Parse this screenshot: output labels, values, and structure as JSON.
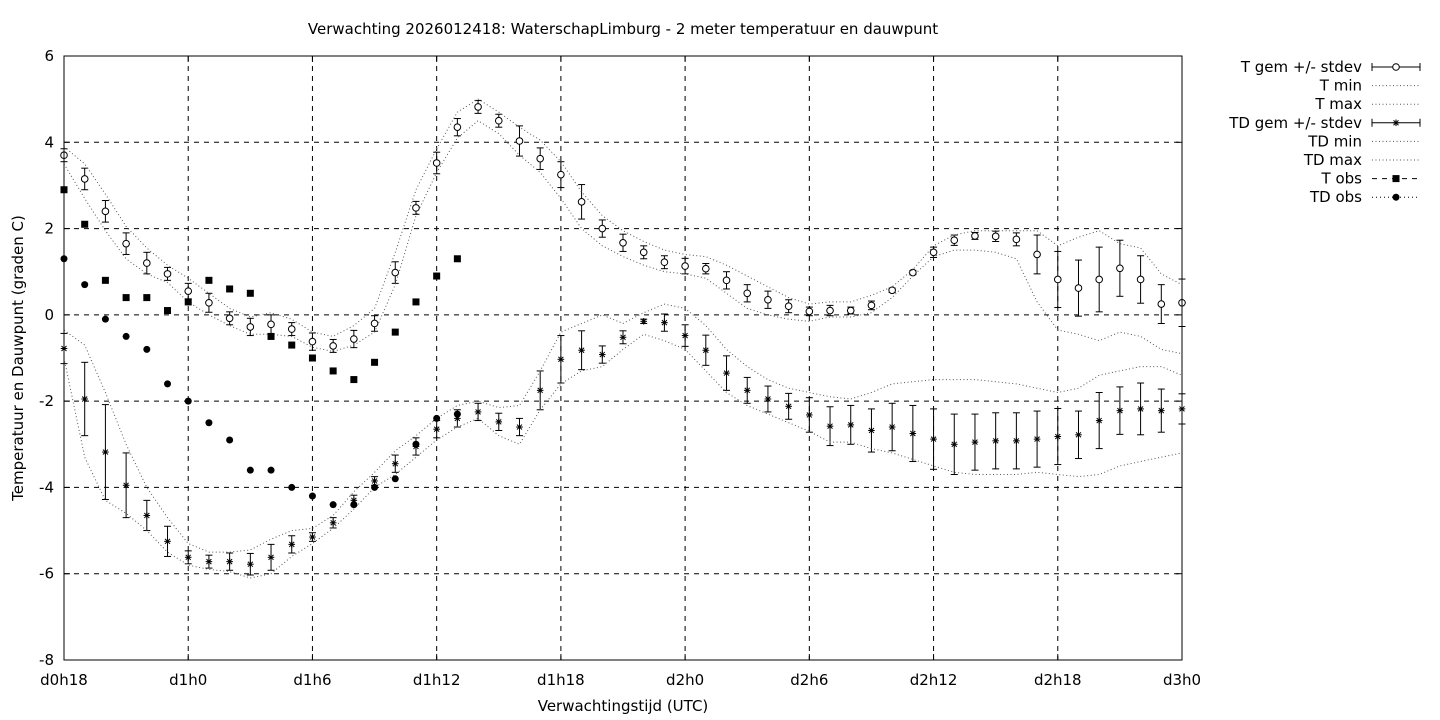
{
  "chart_data": {
    "type": "line",
    "title": "Verwachting 2026012418: WaterschapLimburg - 2 meter temperatuur en dauwpunt",
    "xlabel": "Verwachtingstijd (UTC)",
    "ylabel": "Temperatuur en Dauwpunt (graden C)",
    "xlim": [
      18,
      72
    ],
    "ylim": [
      -8,
      6
    ],
    "grid": true,
    "legend_position": "outside-right",
    "x_ticks": [
      {
        "value": 18,
        "label": "d0h18"
      },
      {
        "value": 24,
        "label": "d1h0"
      },
      {
        "value": 30,
        "label": "d1h6"
      },
      {
        "value": 36,
        "label": "d1h12"
      },
      {
        "value": 42,
        "label": "d1h18"
      },
      {
        "value": 48,
        "label": "d2h0"
      },
      {
        "value": 54,
        "label": "d2h6"
      },
      {
        "value": 60,
        "label": "d2h12"
      },
      {
        "value": 66,
        "label": "d2h18"
      },
      {
        "value": 72,
        "label": "d3h0"
      }
    ],
    "y_ticks": [
      {
        "value": 6,
        "label": "6"
      },
      {
        "value": 4,
        "label": "4"
      },
      {
        "value": 2,
        "label": "2"
      },
      {
        "value": 0,
        "label": "0"
      },
      {
        "value": -2,
        "label": "-2"
      },
      {
        "value": -4,
        "label": "-4"
      },
      {
        "value": -6,
        "label": "-6"
      },
      {
        "value": -8,
        "label": "-8"
      }
    ],
    "x": [
      18,
      19,
      20,
      21,
      22,
      23,
      24,
      25,
      26,
      27,
      28,
      29,
      30,
      31,
      32,
      33,
      34,
      35,
      36,
      37,
      38,
      39,
      40,
      41,
      42,
      43,
      44,
      45,
      46,
      47,
      48,
      49,
      50,
      51,
      52,
      53,
      54,
      55,
      56,
      57,
      58,
      59,
      60,
      61,
      62,
      63,
      64,
      65,
      66,
      67,
      68,
      69,
      70,
      71,
      72
    ],
    "series": [
      {
        "name": "T gem +/- stdev",
        "style": "errorbar-open-circle",
        "values": [
          3.7,
          3.15,
          2.4,
          1.65,
          1.2,
          0.95,
          0.55,
          0.28,
          -0.08,
          -0.28,
          -0.22,
          -0.33,
          -0.62,
          -0.72,
          -0.56,
          -0.2,
          0.98,
          2.48,
          3.52,
          4.35,
          4.82,
          4.5,
          4.03,
          3.62,
          3.25,
          2.62,
          2.0,
          1.67,
          1.45,
          1.22,
          1.13,
          1.07,
          0.8,
          0.5,
          0.35,
          0.2,
          0.08,
          0.1,
          0.1,
          0.22,
          0.57,
          0.98,
          1.45,
          1.73,
          1.83,
          1.82,
          1.75,
          1.4,
          0.82,
          0.62,
          0.82,
          1.08,
          0.82,
          0.25,
          0.28
        ],
        "errors": [
          0.15,
          0.25,
          0.25,
          0.25,
          0.25,
          0.15,
          0.18,
          0.22,
          0.15,
          0.2,
          0.22,
          0.15,
          0.2,
          0.15,
          0.2,
          0.18,
          0.25,
          0.15,
          0.25,
          0.2,
          0.15,
          0.15,
          0.35,
          0.25,
          0.3,
          0.4,
          0.2,
          0.2,
          0.15,
          0.15,
          0.18,
          0.12,
          0.2,
          0.2,
          0.2,
          0.15,
          0.1,
          0.12,
          0.08,
          0.1,
          0.05,
          0.05,
          0.12,
          0.12,
          0.08,
          0.12,
          0.15,
          0.45,
          0.65,
          0.65,
          0.75,
          0.65,
          0.55,
          0.45,
          0.55
        ]
      },
      {
        "name": "T min",
        "style": "dotted",
        "values": [
          3.5,
          2.7,
          1.95,
          1.3,
          0.95,
          0.75,
          0.3,
          0.0,
          -0.25,
          -0.45,
          -0.45,
          -0.5,
          -0.75,
          -0.85,
          -0.7,
          -0.4,
          0.7,
          2.3,
          3.3,
          4.1,
          4.5,
          4.2,
          3.7,
          3.3,
          2.7,
          2.0,
          1.6,
          1.35,
          1.15,
          1.0,
          0.95,
          0.85,
          0.5,
          0.15,
          0.0,
          -0.1,
          -0.15,
          -0.05,
          -0.05,
          0.05,
          0.4,
          0.9,
          1.35,
          1.5,
          1.5,
          1.45,
          1.3,
          0.3,
          -0.35,
          -0.45,
          -0.6,
          -0.4,
          -0.5,
          -0.8,
          -0.9
        ]
      },
      {
        "name": "T max",
        "style": "dotted",
        "values": [
          3.9,
          3.5,
          2.8,
          2.05,
          1.55,
          1.15,
          0.85,
          0.5,
          0.15,
          -0.05,
          0.05,
          -0.1,
          -0.4,
          -0.5,
          -0.25,
          0.15,
          1.45,
          2.9,
          3.85,
          4.7,
          5.0,
          4.7,
          4.35,
          4.05,
          3.55,
          2.85,
          2.3,
          1.95,
          1.7,
          1.5,
          1.4,
          1.35,
          1.15,
          0.9,
          0.65,
          0.4,
          0.25,
          0.3,
          0.3,
          0.45,
          0.65,
          1.05,
          1.6,
          1.85,
          1.95,
          1.95,
          1.95,
          1.95,
          1.6,
          1.8,
          1.95,
          1.65,
          1.55,
          0.95,
          0.7
        ]
      },
      {
        "name": "TD gem +/- stdev",
        "style": "errorbar-star",
        "values": [
          -0.78,
          -1.95,
          -3.18,
          -3.95,
          -4.65,
          -5.25,
          -5.62,
          -5.72,
          -5.72,
          -5.78,
          -5.62,
          -5.32,
          -5.15,
          -4.82,
          -4.3,
          -3.85,
          -3.45,
          -3.05,
          -2.65,
          -2.4,
          -2.25,
          -2.48,
          -2.6,
          -1.75,
          -1.03,
          -0.82,
          -0.92,
          -0.52,
          -0.15,
          -0.18,
          -0.48,
          -0.82,
          -1.35,
          -1.75,
          -1.95,
          -2.12,
          -2.32,
          -2.58,
          -2.55,
          -2.68,
          -2.6,
          -2.75,
          -2.88,
          -3.0,
          -2.95,
          -2.92,
          -2.92,
          -2.88,
          -2.82,
          -2.78,
          -2.45,
          -2.22,
          -2.18,
          -2.22,
          -2.18
        ],
        "errors": [
          0.35,
          0.85,
          1.1,
          0.75,
          0.35,
          0.35,
          0.15,
          0.15,
          0.2,
          0.25,
          0.3,
          0.2,
          0.1,
          0.12,
          0.12,
          0.1,
          0.2,
          0.2,
          0.2,
          0.2,
          0.2,
          0.2,
          0.2,
          0.45,
          0.55,
          0.45,
          0.2,
          0.15,
          0.05,
          0.2,
          0.25,
          0.35,
          0.4,
          0.3,
          0.3,
          0.3,
          0.4,
          0.45,
          0.45,
          0.5,
          0.55,
          0.65,
          0.7,
          0.7,
          0.65,
          0.65,
          0.65,
          0.65,
          0.65,
          0.55,
          0.65,
          0.55,
          0.6,
          0.5,
          0.35
        ]
      },
      {
        "name": "TD min",
        "style": "dotted",
        "values": [
          -1.0,
          -3.3,
          -4.3,
          -4.6,
          -5.0,
          -5.5,
          -5.8,
          -5.9,
          -5.95,
          -6.1,
          -6.0,
          -5.6,
          -5.3,
          -4.95,
          -4.5,
          -4.0,
          -3.7,
          -3.3,
          -2.9,
          -2.6,
          -2.4,
          -2.8,
          -3.0,
          -2.2,
          -1.6,
          -1.3,
          -1.2,
          -0.8,
          -0.45,
          -0.6,
          -0.8,
          -1.3,
          -1.8,
          -2.1,
          -2.3,
          -2.5,
          -2.7,
          -2.95,
          -2.95,
          -3.1,
          -3.2,
          -3.35,
          -3.5,
          -3.65,
          -3.7,
          -3.7,
          -3.7,
          -3.65,
          -3.7,
          -3.75,
          -3.7,
          -3.5,
          -3.4,
          -3.3,
          -3.2
        ]
      },
      {
        "name": "TD max",
        "style": "dotted",
        "values": [
          -0.35,
          -0.7,
          -1.8,
          -3.0,
          -4.0,
          -4.7,
          -5.3,
          -5.5,
          -5.5,
          -5.45,
          -5.2,
          -5.0,
          -4.95,
          -4.65,
          -4.1,
          -3.65,
          -3.15,
          -2.8,
          -2.4,
          -2.1,
          -2.0,
          -2.15,
          -2.1,
          -1.3,
          -0.4,
          -0.2,
          0.0,
          -0.2,
          0.05,
          0.25,
          0.15,
          -0.25,
          -0.8,
          -1.2,
          -1.5,
          -1.7,
          -1.8,
          -1.9,
          -1.95,
          -1.8,
          -1.6,
          -1.55,
          -1.5,
          -1.5,
          -1.5,
          -1.55,
          -1.6,
          -1.7,
          -1.8,
          -1.7,
          -1.4,
          -1.3,
          -1.2,
          -1.2,
          -1.4
        ]
      },
      {
        "name": "T obs",
        "style": "square",
        "x": [
          18,
          19,
          20,
          21,
          22,
          23,
          24,
          25,
          26,
          27,
          28,
          29,
          30,
          31,
          32,
          33,
          34,
          35,
          36,
          37
        ],
        "values": [
          2.9,
          2.1,
          0.8,
          0.4,
          0.4,
          0.1,
          0.3,
          0.8,
          0.6,
          0.5,
          -0.5,
          -0.7,
          -1.0,
          -1.3,
          -1.5,
          -1.1,
          -0.4,
          0.3,
          0.9,
          1.3
        ]
      },
      {
        "name": "TD obs",
        "style": "dot",
        "x": [
          18,
          19,
          20,
          21,
          22,
          23,
          24,
          25,
          26,
          27,
          28,
          29,
          30,
          31,
          32,
          33,
          34,
          35,
          36,
          37
        ],
        "values": [
          1.3,
          0.7,
          -0.1,
          -0.5,
          -0.8,
          -1.6,
          -2.0,
          -2.5,
          -2.9,
          -3.6,
          -3.6,
          -4.0,
          -4.2,
          -4.4,
          -4.4,
          -4.0,
          -3.8,
          -3.0,
          -2.4,
          -2.3
        ]
      }
    ]
  }
}
